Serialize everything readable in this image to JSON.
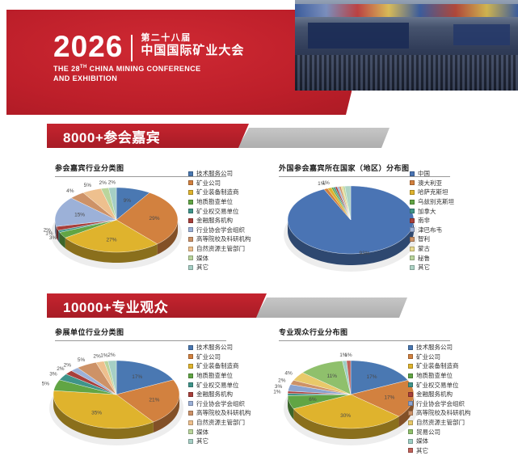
{
  "header": {
    "year": "2026",
    "edition_cn": "第二十八届",
    "title_cn": "中国国际矿业大会",
    "en1a": "THE 28",
    "en1sup": "TH",
    "en1b": " CHINA MINING CONFERENCE",
    "en2": "AND EXHIBITION",
    "brand_red": "#bd1f2a",
    "banner_gray": "#b5b5b5"
  },
  "sections": [
    {
      "banner": "8000+参会嘉宾"
    },
    {
      "banner": "10000+专业观众"
    }
  ],
  "chart_data": [
    {
      "type": "pie",
      "title": "参会嘉宾行业分类图",
      "legend_position": "right",
      "series": [
        {
          "name": "技术服务公司",
          "value": 9,
          "label": "9%",
          "color": "#4a78b2"
        },
        {
          "name": "矿业公司",
          "value": 29,
          "label": "29%",
          "color": "#d2813f"
        },
        {
          "name": "矿业装备制造商",
          "value": 27,
          "label": "27%",
          "color": "#dfb32d"
        },
        {
          "name": "地质勘查单位",
          "value": 3,
          "label": "3%",
          "color": "#61a544"
        },
        {
          "name": "矿业权交易单位",
          "value": 1,
          "label": "1%",
          "color": "#3f948a"
        },
        {
          "name": "金融服务机构",
          "value": 2,
          "label": "2%",
          "color": "#a83f3b"
        },
        {
          "name": "行业协会学会组织",
          "value": 15,
          "label": "15%",
          "color": "#9cb1d8"
        },
        {
          "name": "高等院校及科研机构",
          "value": 4,
          "label": "4%",
          "color": "#cd9267"
        },
        {
          "name": "自然资源主管部门",
          "value": 5,
          "label": "5%",
          "color": "#eec08e"
        },
        {
          "name": "媒体",
          "value": 2,
          "label": "2%",
          "color": "#b9d59c"
        },
        {
          "name": "其它",
          "value": 2,
          "label": "2%",
          "color": "#a6cfc5"
        }
      ]
    },
    {
      "type": "pie",
      "title": "外国参会嘉宾所在国家（地区）分布图",
      "legend_position": "right",
      "series": [
        {
          "name": "中国",
          "value": 93,
          "label": "93%",
          "color": "#4a74b4"
        },
        {
          "name": "澳大利亚",
          "value": 1,
          "label": "1%",
          "color": "#d2813f"
        },
        {
          "name": "哈萨克斯坦",
          "value": 1,
          "label": "1%",
          "color": "#dfb32d"
        },
        {
          "name": "乌兹别克斯坦",
          "value": 0.5,
          "color": "#61a544"
        },
        {
          "name": "加拿大",
          "value": 0.5,
          "color": "#3f948a"
        },
        {
          "name": "南非",
          "value": 0.5,
          "color": "#a83f3b"
        },
        {
          "name": "津巴布韦",
          "value": 0.5,
          "color": "#9cb1d8"
        },
        {
          "name": "智利",
          "value": 0.5,
          "color": "#cd9267"
        },
        {
          "name": "蒙古",
          "value": 0.5,
          "color": "#e9da8e"
        },
        {
          "name": "秘鲁",
          "value": 0.5,
          "color": "#b9d59c"
        },
        {
          "name": "其它",
          "value": 1.5,
          "color": "#aed4c6"
        }
      ]
    },
    {
      "type": "pie",
      "title": "参展单位行业分类图",
      "legend_position": "right",
      "series": [
        {
          "name": "技术服务公司",
          "value": 17,
          "label": "17%",
          "color": "#4a78b2"
        },
        {
          "name": "矿业公司",
          "value": 21,
          "label": "21%",
          "color": "#d2813f"
        },
        {
          "name": "矿业装备制造商",
          "value": 35,
          "label": "35%",
          "color": "#dfb32d"
        },
        {
          "name": "地质勘查单位",
          "value": 5,
          "label": "5%",
          "color": "#61a544"
        },
        {
          "name": "矿业权交易单位",
          "value": 3,
          "label": "3%",
          "color": "#3f948a"
        },
        {
          "name": "金融服务机构",
          "value": 2,
          "label": "2%",
          "color": "#a83f3b"
        },
        {
          "name": "行业协会学会组织",
          "value": 2,
          "label": "2%",
          "color": "#9cb1d8"
        },
        {
          "name": "高等院校及科研机构",
          "value": 5,
          "label": "5%",
          "color": "#cd9267"
        },
        {
          "name": "自然资源主管部门",
          "value": 2,
          "label": "2%",
          "color": "#eec08e"
        },
        {
          "name": "媒体",
          "value": 1,
          "label": "1%",
          "color": "#b9d59c"
        },
        {
          "name": "其它",
          "value": 2,
          "label": "2%",
          "color": "#a6cfc5"
        }
      ]
    },
    {
      "type": "pie",
      "title": "专业观众行业分布图",
      "legend_position": "right",
      "series": [
        {
          "name": "技术服务公司",
          "value": 17,
          "label": "17%",
          "color": "#4a78b2"
        },
        {
          "name": "矿业公司",
          "value": 17,
          "label": "17%",
          "color": "#d2813f"
        },
        {
          "name": "矿业装备制造商",
          "value": 30,
          "label": "30%",
          "color": "#dfb32d"
        },
        {
          "name": "地质勘查单位",
          "value": 6,
          "label": "6%",
          "color": "#61a544"
        },
        {
          "name": "矿业权交易单位",
          "value": 1,
          "color": "#3f948a"
        },
        {
          "name": "金融服务机构",
          "value": 1,
          "label": "1%",
          "color": "#a83f3b"
        },
        {
          "name": "行业协会学会组织",
          "value": 3,
          "label": "3%",
          "color": "#8aa3d0"
        },
        {
          "name": "高等院校及科研机构",
          "value": 2,
          "label": "2%",
          "color": "#cd9267"
        },
        {
          "name": "自然资源主管部门",
          "value": 4,
          "label": "4%",
          "color": "#e8c96a"
        },
        {
          "name": "贸易公司",
          "value": 11,
          "label": "11%",
          "color": "#8fc06c"
        },
        {
          "name": "媒体",
          "value": 1,
          "label": "1%",
          "color": "#9ecfc4"
        },
        {
          "name": "其它",
          "value": 1,
          "label": "1%",
          "color": "#c0625a"
        }
      ]
    }
  ]
}
